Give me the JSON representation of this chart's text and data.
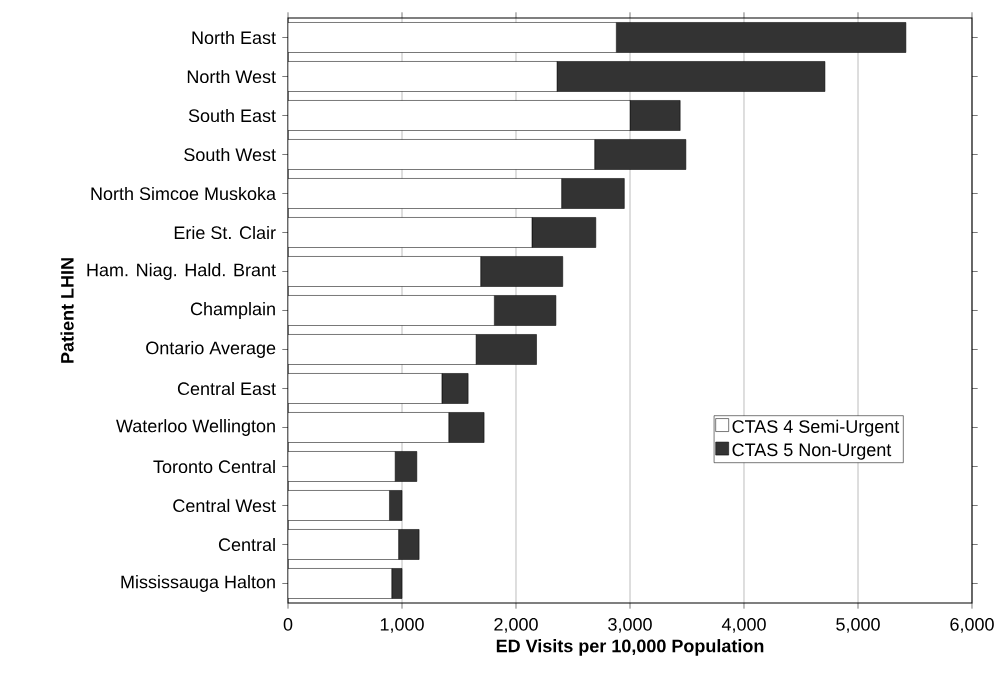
{
  "chart_data": {
    "type": "bar",
    "orientation": "horizontal",
    "stacked": true,
    "xlabel": "ED Visits per 10,000 Population",
    "ylabel": "Patient LHIN",
    "categories": [
      "North East",
      "North West",
      "South East",
      "South West",
      "North Simcoe Muskoka",
      "Erie St. Clair",
      "Ham. Niag. Hald. Brant",
      "Champlain",
      "Ontario Average",
      "Central East",
      "Waterloo Wellington",
      "Toronto Central",
      "Central West",
      "Central",
      "Mississauga Halton"
    ],
    "series": [
      {
        "name": "CTAS 4 Semi-Urgent",
        "color": "#ffffff",
        "values": [
          2880,
          2360,
          3000,
          2690,
          2400,
          2140,
          1690,
          1810,
          1650,
          1350,
          1410,
          940,
          890,
          970,
          910
        ]
      },
      {
        "name": "CTAS 5 Non-Urgent",
        "color": "#333333",
        "values": [
          2540,
          2350,
          440,
          800,
          550,
          560,
          720,
          540,
          530,
          230,
          310,
          190,
          110,
          180,
          90
        ]
      }
    ],
    "xlim": [
      0,
      6000
    ],
    "xticks": [
      {
        "value": 0,
        "label": "0"
      },
      {
        "value": 1000,
        "label": "1,000"
      },
      {
        "value": 2000,
        "label": "2,000"
      },
      {
        "value": 3000,
        "label": "3,000"
      },
      {
        "value": 4000,
        "label": "4,000"
      },
      {
        "value": 5000,
        "label": "5,000"
      },
      {
        "value": 6000,
        "label": "6,000"
      }
    ],
    "grid": "x",
    "legend": "right"
  }
}
